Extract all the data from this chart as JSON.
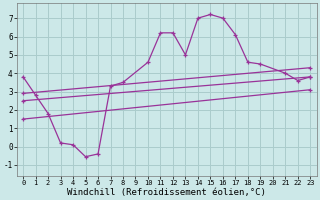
{
  "bg_color": "#cce8e8",
  "line_color": "#993399",
  "grid_color": "#aacccc",
  "xlabel": "Windchill (Refroidissement éolien,°C)",
  "xlabel_fontsize": 6.5,
  "xlim": [
    -0.5,
    23.5
  ],
  "ylim": [
    -1.6,
    7.8
  ],
  "xticks": [
    0,
    1,
    2,
    3,
    4,
    5,
    6,
    7,
    8,
    9,
    10,
    11,
    12,
    13,
    14,
    15,
    16,
    17,
    18,
    19,
    20,
    21,
    22,
    23
  ],
  "yticks": [
    -1,
    0,
    1,
    2,
    3,
    4,
    5,
    6,
    7
  ],
  "curve_x": [
    0,
    1,
    2,
    3,
    4,
    5,
    6,
    7,
    8,
    10,
    11,
    12,
    13,
    14,
    15,
    16,
    17,
    18,
    19,
    21,
    22,
    23
  ],
  "curve_y": [
    3.8,
    2.8,
    1.8,
    0.2,
    0.1,
    -0.55,
    -0.4,
    3.3,
    3.5,
    4.6,
    6.2,
    6.2,
    5.0,
    7.0,
    7.2,
    7.0,
    6.1,
    4.6,
    4.5,
    4.0,
    3.6,
    3.8
  ],
  "line1_x": [
    0,
    23
  ],
  "line1_y": [
    2.9,
    4.3
  ],
  "line2_x": [
    0,
    23
  ],
  "line2_y": [
    2.5,
    3.8
  ],
  "line3_x": [
    0,
    23
  ],
  "line3_y": [
    1.5,
    3.1
  ]
}
